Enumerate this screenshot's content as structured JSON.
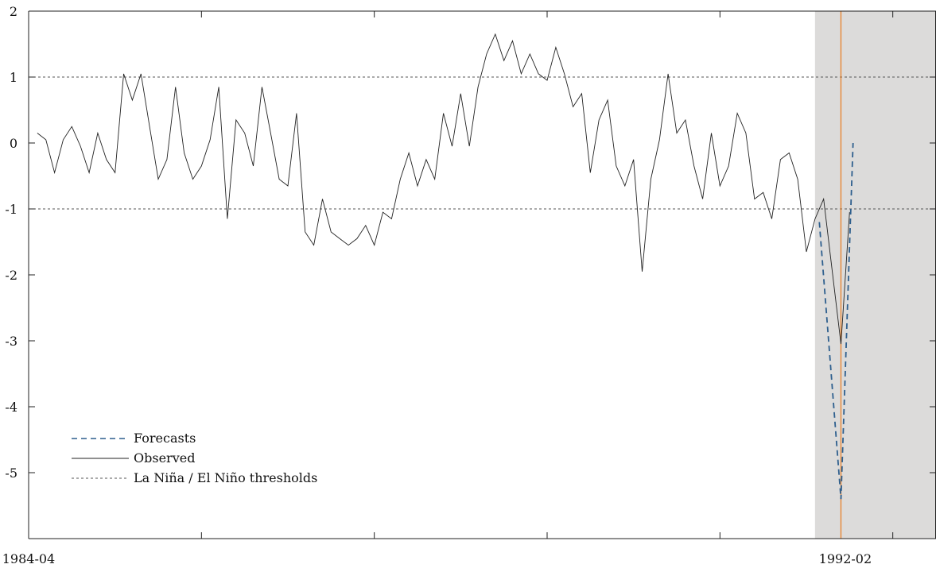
{
  "chart_data": {
    "type": "line",
    "title": "",
    "xlabel": "",
    "ylabel": "",
    "ylim": [
      -6,
      2
    ],
    "xlim": [
      0,
      105
    ],
    "y_ticks": [
      2,
      1,
      0,
      -1,
      -2,
      -3,
      -4,
      -5
    ],
    "y_tick_labels": [
      "2",
      "1",
      "0",
      "-1",
      "-2",
      "-3",
      "-4",
      "-5"
    ],
    "x_tick_positions": [
      20,
      40,
      60,
      80,
      100
    ],
    "x_labeled_ticks": [
      {
        "x": 0,
        "label": "1984-04"
      },
      {
        "x": 94.5,
        "label": "1992-02"
      }
    ],
    "shaded_region": {
      "x_start": 91,
      "x_end": 105,
      "color": "#dcdbda"
    },
    "forecast_origin_line": {
      "x": 94,
      "color": "#e8822a"
    },
    "thresholds": [
      1,
      -1
    ],
    "series": [
      {
        "name": "Observed",
        "style": "solid",
        "color": "#222222",
        "x": [
          1,
          2,
          3,
          4,
          5,
          6,
          7,
          8,
          9,
          10,
          11,
          12,
          13,
          14,
          15,
          16,
          17,
          18,
          19,
          20,
          21,
          22,
          23,
          24,
          25,
          26,
          27,
          28,
          29,
          30,
          31,
          32,
          33,
          34,
          35,
          36,
          37,
          38,
          39,
          40,
          41,
          42,
          43,
          44,
          45,
          46,
          47,
          48,
          49,
          50,
          51,
          52,
          53,
          54,
          55,
          56,
          57,
          58,
          59,
          60,
          61,
          62,
          63,
          64,
          65,
          66,
          67,
          68,
          69,
          70,
          71,
          72,
          73,
          74,
          75,
          76,
          77,
          78,
          79,
          80,
          81,
          82,
          83,
          84,
          85,
          86,
          87,
          88,
          89,
          90,
          91,
          92,
          93,
          94,
          95
        ],
        "y": [
          0.15,
          0.05,
          -0.45,
          0.05,
          0.25,
          -0.05,
          -0.45,
          0.15,
          -0.25,
          -0.45,
          1.05,
          0.65,
          1.05,
          0.25,
          -0.55,
          -0.25,
          0.85,
          -0.15,
          -0.55,
          -0.35,
          0.05,
          0.85,
          -1.15,
          0.35,
          0.15,
          -0.35,
          0.85,
          0.15,
          -0.55,
          -0.65,
          0.45,
          -1.35,
          -1.55,
          -0.85,
          -1.35,
          -1.45,
          -1.55,
          -1.45,
          -1.25,
          -1.55,
          -1.05,
          -1.15,
          -0.55,
          -0.15,
          -0.65,
          -0.25,
          -0.55,
          0.45,
          -0.05,
          0.75,
          -0.05,
          0.85,
          1.35,
          1.65,
          1.25,
          1.55,
          1.05,
          1.35,
          1.05,
          0.95,
          1.45,
          1.05,
          0.55,
          0.75,
          -0.45,
          0.35,
          0.65,
          -0.35,
          -0.65,
          -0.25,
          -1.95,
          -0.55,
          0.05,
          1.05,
          0.15,
          0.35,
          -0.35,
          -0.85,
          0.15,
          -0.65,
          -0.35,
          0.45,
          0.15,
          -0.85,
          -0.75,
          -1.15,
          -0.25,
          -0.15,
          -0.55,
          -1.65,
          -1.15,
          -0.85,
          -1.95,
          -3.05,
          -1.05
        ]
      },
      {
        "name": "Forecasts",
        "style": "dashed",
        "color": "#2e5f8e",
        "x": [
          91.5,
          94,
          95.4
        ],
        "y": [
          -1.2,
          -5.4,
          0
        ]
      }
    ],
    "legend": {
      "position": "bottom-left",
      "entries": [
        "Forecasts",
        "Observed",
        "La Niña / El Niño thresholds"
      ]
    }
  }
}
